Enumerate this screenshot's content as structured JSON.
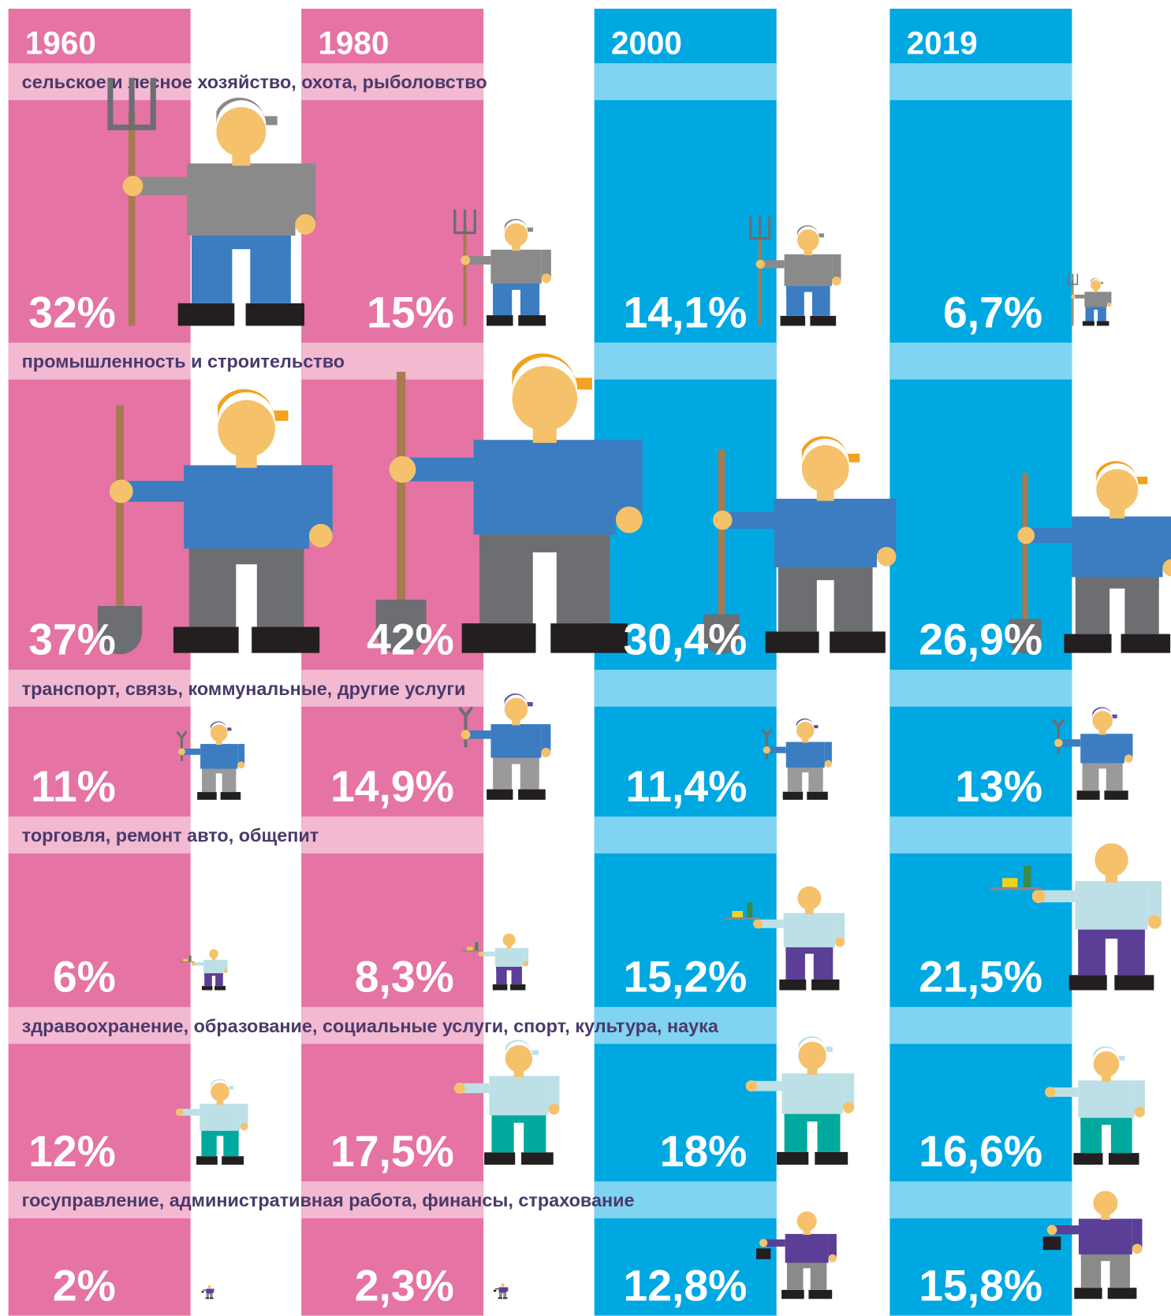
{
  "chart_data": {
    "type": "pictograph",
    "categories": [
      "сельское и лесное хозяйство, охота, рыболовство",
      "промышленность и строительство",
      "транспорт, связь, коммунальные, другие услуги",
      "торговля, ремонт авто, общепит",
      "здравоохранение, образование, социальные услуги, спорт, культура, наука",
      "госуправление, административная работа, финансы, страхование"
    ],
    "series": [
      {
        "name": "1960",
        "color": "#e573a3",
        "values": [
          32,
          37,
          11,
          6,
          12,
          2
        ],
        "value_labels": [
          "32%",
          "37%",
          "11%",
          "6%",
          "12%",
          "2%"
        ]
      },
      {
        "name": "1980",
        "color": "#e573a3",
        "values": [
          15,
          42,
          14.9,
          8.3,
          17.5,
          2.3
        ],
        "value_labels": [
          "15%",
          "42%",
          "14,9%",
          "8,3%",
          "17,5%",
          "2,3%"
        ]
      },
      {
        "name": "2000",
        "color": "#00a8e2",
        "values": [
          14.1,
          30.4,
          11.4,
          15.2,
          18,
          12.8
        ],
        "value_labels": [
          "14,1%",
          "30,4%",
          "11,4%",
          "15,2%",
          "18%",
          "12,8%"
        ]
      },
      {
        "name": "2019",
        "color": "#00a8e2",
        "values": [
          6.7,
          26.9,
          13,
          21.5,
          16.6,
          15.8
        ],
        "value_labels": [
          "6,7%",
          "26,9%",
          "13%",
          "21,5%",
          "16,6%",
          "15,8%"
        ]
      }
    ]
  }
}
